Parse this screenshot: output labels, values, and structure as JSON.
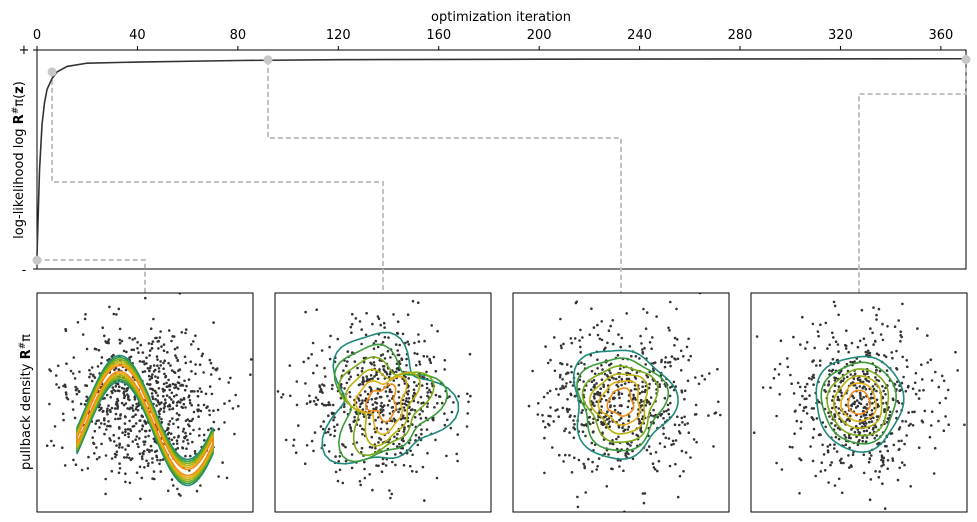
{
  "chart_data": [
    {
      "type": "line",
      "title": "",
      "xlabel": "optimization iteration",
      "ylabel": "log-likelihood log R#π(z)",
      "xlim": [
        0,
        370
      ],
      "ylim": [
        0,
        1
      ],
      "x_ticks": [
        0,
        40,
        80,
        120,
        160,
        200,
        240,
        280,
        320,
        360
      ],
      "x_tick_labels": [
        "0",
        "40",
        "80",
        "120",
        "160",
        "200",
        "240",
        "280",
        "320",
        "360"
      ],
      "y_tick_labels": [
        "+",
        "-"
      ],
      "x": [
        0,
        1,
        2,
        3,
        4,
        6,
        8,
        12,
        20,
        40,
        80,
        120,
        200,
        280,
        370
      ],
      "values": [
        0.06,
        0.45,
        0.66,
        0.76,
        0.82,
        0.87,
        0.9,
        0.925,
        0.94,
        0.945,
        0.952,
        0.956,
        0.958,
        0.959,
        0.96
      ],
      "markers": [
        {
          "x": 0,
          "y": 0.04
        },
        {
          "x": 6,
          "y": 0.9
        },
        {
          "x": 92,
          "y": 0.955
        },
        {
          "x": 370,
          "y": 0.957
        }
      ],
      "line_color": "#333333",
      "marker_color": "#c8c8c8",
      "connector_color": "#c0c0c0"
    },
    {
      "type": "scatter",
      "panels": 4,
      "ylabel": "pullback density R#π",
      "point_color": "#333333",
      "contour_colors": [
        "#1f8a7a",
        "#3a9b3a",
        "#7aab18",
        "#b5b10d",
        "#e1b012",
        "#f28c16"
      ],
      "panel_iterations": [
        0,
        6,
        92,
        370
      ]
    }
  ],
  "labels": {
    "xlabel": "optimization iteration",
    "ylabel_top_prefix": "log-likelihood log ",
    "ylabel_top_R": "R",
    "ylabel_top_sup": "#",
    "ylabel_top_pi": "π(",
    "ylabel_top_z": "z",
    "ylabel_top_close": ")",
    "ylabel_bottom_prefix": "pullback density ",
    "ylabel_bottom_R": "R",
    "ylabel_bottom_sup": "#",
    "ylabel_bottom_pi": "π",
    "ytick_plus": "+",
    "ytick_minus": "-"
  }
}
